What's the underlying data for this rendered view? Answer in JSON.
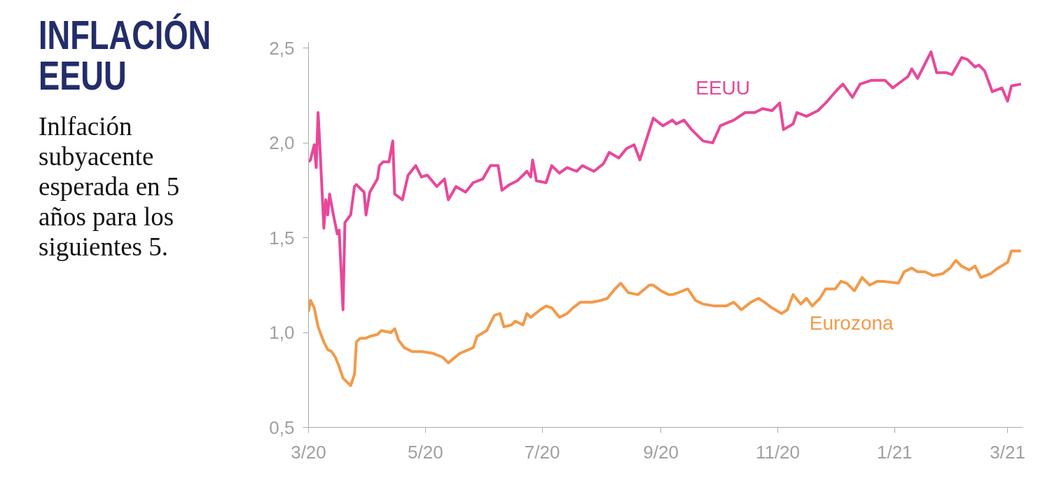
{
  "chart_data": {
    "type": "line",
    "title": "INFLACIÓN EEUU",
    "subtitle": "Inlfación subyacente esperada en 5 años para los siguientes 5.",
    "xlim": [
      "2020-03-01",
      "2021-03-09"
    ],
    "ylim": [
      0.5,
      2.53
    ],
    "xticks": [
      {
        "value": "2020-03-01",
        "label": "3/20"
      },
      {
        "value": "2020-05-01",
        "label": "5/20"
      },
      {
        "value": "2020-07-01",
        "label": "7/20"
      },
      {
        "value": "2020-09-01",
        "label": "9/20"
      },
      {
        "value": "2020-11-01",
        "label": "11/20"
      },
      {
        "value": "2021-01-01",
        "label": "1/21"
      },
      {
        "value": "2021-03-01",
        "label": "3/21"
      }
    ],
    "yticks": [
      {
        "value": 0.5,
        "label": "0,5"
      },
      {
        "value": 1.0,
        "label": "1,0"
      },
      {
        "value": 1.5,
        "label": "1,5"
      },
      {
        "value": 2.0,
        "label": "2,0"
      },
      {
        "value": 2.5,
        "label": "2,5"
      }
    ],
    "grid": false,
    "series": [
      {
        "name": "EEUU",
        "color": "#e8489a",
        "x": [
          "2020-03-01",
          "2020-03-02",
          "2020-03-04",
          "2020-03-05",
          "2020-03-06",
          "2020-03-07",
          "2020-03-09",
          "2020-03-10",
          "2020-03-11",
          "2020-03-12",
          "2020-03-14",
          "2020-03-16",
          "2020-03-17",
          "2020-03-19",
          "2020-03-20",
          "2020-03-23",
          "2020-03-25",
          "2020-03-26",
          "2020-03-30",
          "2020-03-31",
          "2020-04-02",
          "2020-04-06",
          "2020-04-07",
          "2020-04-09",
          "2020-04-12",
          "2020-04-14",
          "2020-04-15",
          "2020-04-19",
          "2020-04-22",
          "2020-04-26",
          "2020-04-29",
          "2020-05-02",
          "2020-05-07",
          "2020-05-11",
          "2020-05-13",
          "2020-05-17",
          "2020-05-22",
          "2020-05-26",
          "2020-05-31",
          "2020-06-04",
          "2020-06-08",
          "2020-06-10",
          "2020-06-14",
          "2020-06-18",
          "2020-06-23",
          "2020-06-25",
          "2020-06-26",
          "2020-06-28",
          "2020-07-03",
          "2020-07-06",
          "2020-07-10",
          "2020-07-14",
          "2020-07-19",
          "2020-07-22",
          "2020-07-28",
          "2020-08-02",
          "2020-08-05",
          "2020-08-10",
          "2020-08-14",
          "2020-08-18",
          "2020-08-21",
          "2020-08-28",
          "2020-09-02",
          "2020-09-07",
          "2020-09-09",
          "2020-09-13",
          "2020-09-17",
          "2020-09-23",
          "2020-09-28",
          "2020-10-02",
          "2020-10-09",
          "2020-10-15",
          "2020-10-20",
          "2020-10-24",
          "2020-10-29",
          "2020-11-02",
          "2020-11-04",
          "2020-11-09",
          "2020-11-11",
          "2020-11-16",
          "2020-11-22",
          "2020-11-26",
          "2020-12-02",
          "2020-12-05",
          "2020-12-10",
          "2020-12-14",
          "2020-12-20",
          "2020-12-27",
          "2020-12-31",
          "2021-01-08",
          "2021-01-10",
          "2021-01-13",
          "2021-01-20",
          "2021-01-23",
          "2021-01-28",
          "2021-01-31",
          "2021-02-05",
          "2021-02-08",
          "2021-02-12",
          "2021-02-14",
          "2021-02-17",
          "2021-02-21",
          "2021-02-26",
          "2021-03-01",
          "2021-03-03",
          "2021-03-08"
        ],
        "values": [
          1.9,
          1.91,
          1.99,
          1.87,
          2.16,
          1.97,
          1.55,
          1.7,
          1.62,
          1.73,
          1.62,
          1.52,
          1.54,
          1.12,
          1.58,
          1.62,
          1.77,
          1.78,
          1.74,
          1.62,
          1.74,
          1.81,
          1.88,
          1.9,
          1.9,
          2.01,
          1.73,
          1.7,
          1.83,
          1.88,
          1.82,
          1.83,
          1.77,
          1.81,
          1.7,
          1.77,
          1.74,
          1.79,
          1.81,
          1.88,
          1.88,
          1.75,
          1.78,
          1.8,
          1.85,
          1.82,
          1.91,
          1.8,
          1.79,
          1.88,
          1.84,
          1.87,
          1.85,
          1.88,
          1.85,
          1.89,
          1.95,
          1.92,
          1.97,
          1.99,
          1.91,
          2.13,
          2.09,
          2.12,
          2.1,
          2.12,
          2.07,
          2.01,
          2.0,
          2.09,
          2.12,
          2.16,
          2.16,
          2.18,
          2.17,
          2.21,
          2.07,
          2.1,
          2.16,
          2.14,
          2.17,
          2.21,
          2.28,
          2.31,
          2.24,
          2.31,
          2.33,
          2.33,
          2.29,
          2.35,
          2.39,
          2.34,
          2.48,
          2.37,
          2.37,
          2.36,
          2.45,
          2.44,
          2.4,
          2.41,
          2.38,
          2.27,
          2.29,
          2.22,
          2.3,
          2.31
        ]
      },
      {
        "name": "Eurozona",
        "color": "#f39a4a",
        "x": [
          "2020-03-01",
          "2020-03-02",
          "2020-03-04",
          "2020-03-06",
          "2020-03-09",
          "2020-03-11",
          "2020-03-13",
          "2020-03-15",
          "2020-03-17",
          "2020-03-19",
          "2020-03-21",
          "2020-03-23",
          "2020-03-25",
          "2020-03-26",
          "2020-03-28",
          "2020-03-31",
          "2020-04-02",
          "2020-04-06",
          "2020-04-08",
          "2020-04-13",
          "2020-04-15",
          "2020-04-17",
          "2020-04-20",
          "2020-04-22",
          "2020-04-24",
          "2020-04-29",
          "2020-05-05",
          "2020-05-10",
          "2020-05-13",
          "2020-05-19",
          "2020-05-26",
          "2020-05-28",
          "2020-06-02",
          "2020-06-06",
          "2020-06-09",
          "2020-06-11",
          "2020-06-15",
          "2020-06-17",
          "2020-06-21",
          "2020-06-23",
          "2020-06-25",
          "2020-06-30",
          "2020-07-03",
          "2020-07-06",
          "2020-07-10",
          "2020-07-14",
          "2020-07-17",
          "2020-07-21",
          "2020-07-27",
          "2020-08-01",
          "2020-08-04",
          "2020-08-08",
          "2020-08-11",
          "2020-08-15",
          "2020-08-20",
          "2020-08-26",
          "2020-08-28",
          "2020-09-01",
          "2020-09-05",
          "2020-09-07",
          "2020-09-10",
          "2020-09-15",
          "2020-09-19",
          "2020-09-23",
          "2020-09-29",
          "2020-10-05",
          "2020-10-09",
          "2020-10-13",
          "2020-10-18",
          "2020-10-22",
          "2020-10-25",
          "2020-10-29",
          "2020-11-03",
          "2020-11-06",
          "2020-11-09",
          "2020-11-13",
          "2020-11-16",
          "2020-11-19",
          "2020-11-23",
          "2020-11-26",
          "2020-12-01",
          "2020-12-04",
          "2020-12-07",
          "2020-12-11",
          "2020-12-15",
          "2020-12-19",
          "2020-12-23",
          "2020-12-26",
          "2021-01-03",
          "2021-01-06",
          "2021-01-10",
          "2021-01-13",
          "2021-01-17",
          "2021-01-21",
          "2021-01-26",
          "2021-01-30",
          "2021-02-02",
          "2021-02-05",
          "2021-02-09",
          "2021-02-12",
          "2021-02-15",
          "2021-02-20",
          "2021-02-24",
          "2021-03-01",
          "2021-03-03",
          "2021-03-08"
        ],
        "values": [
          1.11,
          1.17,
          1.13,
          1.03,
          0.95,
          0.91,
          0.9,
          0.87,
          0.82,
          0.76,
          0.74,
          0.72,
          0.78,
          0.95,
          0.97,
          0.97,
          0.98,
          0.99,
          1.01,
          1.0,
          1.02,
          0.96,
          0.92,
          0.91,
          0.9,
          0.9,
          0.89,
          0.87,
          0.84,
          0.89,
          0.92,
          0.98,
          1.01,
          1.09,
          1.1,
          1.03,
          1.04,
          1.06,
          1.04,
          1.1,
          1.08,
          1.12,
          1.14,
          1.13,
          1.08,
          1.1,
          1.13,
          1.16,
          1.16,
          1.17,
          1.18,
          1.23,
          1.26,
          1.21,
          1.2,
          1.25,
          1.25,
          1.22,
          1.2,
          1.2,
          1.21,
          1.23,
          1.17,
          1.15,
          1.14,
          1.14,
          1.16,
          1.12,
          1.16,
          1.18,
          1.16,
          1.13,
          1.1,
          1.12,
          1.2,
          1.15,
          1.18,
          1.14,
          1.18,
          1.23,
          1.23,
          1.27,
          1.26,
          1.22,
          1.29,
          1.25,
          1.27,
          1.27,
          1.26,
          1.32,
          1.34,
          1.32,
          1.32,
          1.3,
          1.31,
          1.34,
          1.38,
          1.35,
          1.33,
          1.35,
          1.29,
          1.31,
          1.34,
          1.37,
          1.43,
          1.43
        ]
      }
    ]
  }
}
